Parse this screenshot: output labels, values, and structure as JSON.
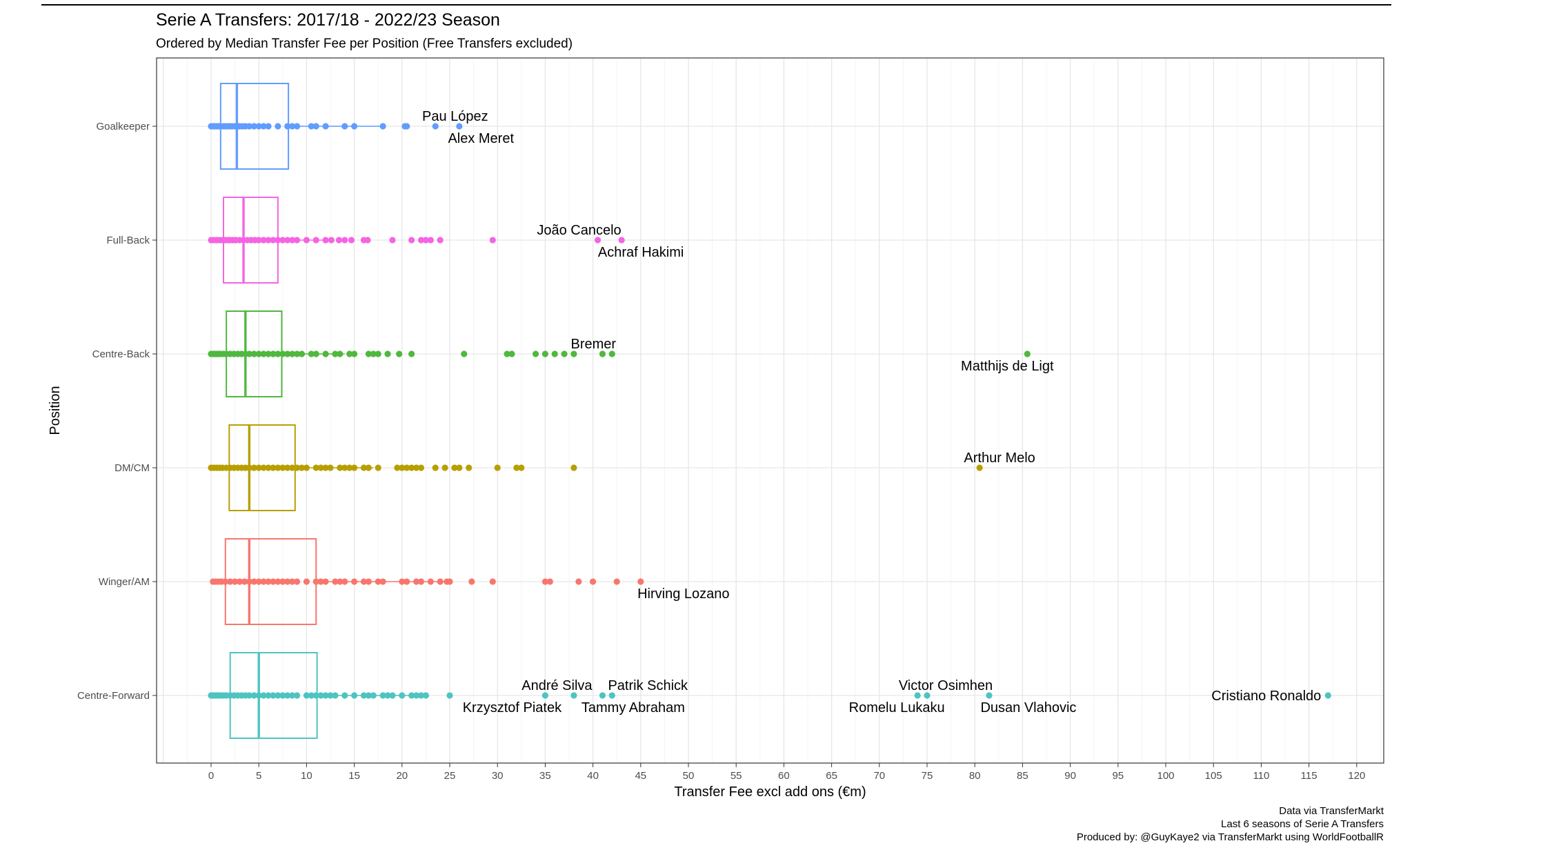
{
  "chart_data": {
    "type": "boxplot",
    "title": "Serie A Transfers: 2017/18 - 2022/23 Season",
    "subtitle": "Ordered by Median Transfer Fee per Position (Free Transfers excluded)",
    "xlabel": "Transfer Fee excl add ons (€m)",
    "ylabel": "Position",
    "xlim": [
      -5.5,
      123
    ],
    "xticks": [
      0,
      5,
      10,
      15,
      20,
      25,
      30,
      35,
      40,
      45,
      50,
      55,
      60,
      65,
      70,
      75,
      80,
      85,
      90,
      95,
      100,
      105,
      110,
      115,
      120
    ],
    "grid": true,
    "legend": "none",
    "caption": [
      "Data via TransferMarkt",
      "Last 6 seasons of Serie A Transfers",
      "Produced by: @GuyKaye2 via TransferMarkt using WorldFootballR"
    ],
    "categories": [
      "Goalkeeper",
      "Full-Back",
      "Centre-Back",
      "DM/CM",
      "Winger/AM",
      "Centre-Forward"
    ],
    "series": [
      {
        "name": "Goalkeeper",
        "color": "#619CFF",
        "box": {
          "q1": 1.0,
          "median": 2.7,
          "q3": 8.1,
          "whisker_low": 0,
          "whisker_high": 18
        },
        "points": [
          0,
          0.2,
          0.4,
          0.6,
          0.8,
          1,
          1.3,
          1.5,
          1.8,
          2,
          2.2,
          2.5,
          2.8,
          3,
          3.3,
          3.6,
          4,
          4.5,
          5,
          5.5,
          6,
          7,
          8,
          8.5,
          9,
          10.5,
          11,
          12,
          14,
          15,
          18,
          20.3,
          20.5,
          23.5,
          26
        ],
        "labels": [
          {
            "text": "Pau López",
            "x": 26
          },
          {
            "text": "Alex Meret",
            "x": 23.5
          }
        ]
      },
      {
        "name": "Full-Back",
        "color": "#F564E3",
        "box": {
          "q1": 1.3,
          "median": 3.4,
          "q3": 7.0,
          "whisker_low": 0,
          "whisker_high": 12.4
        },
        "points": [
          0,
          0.3,
          0.6,
          0.9,
          1.2,
          1.5,
          1.8,
          2,
          2.3,
          2.6,
          3,
          3.4,
          3.8,
          4.2,
          4.6,
          5,
          5.5,
          6,
          6.5,
          7,
          7.5,
          8,
          8.5,
          9,
          10,
          11,
          12,
          12.6,
          13.4,
          14,
          14.7,
          16,
          16.4,
          19,
          21,
          22,
          22.5,
          23,
          24,
          29.5,
          40.5,
          43
        ],
        "labels": [
          {
            "text": "João Cancelo",
            "x": 40.5
          },
          {
            "text": "Achraf Hakimi",
            "x": 43
          }
        ]
      },
      {
        "name": "Centre-Back",
        "color": "#4FB83E",
        "box": {
          "q1": 1.6,
          "median": 3.6,
          "q3": 7.4,
          "whisker_low": 0,
          "whisker_high": 14
        },
        "points": [
          0,
          0.2,
          0.4,
          0.6,
          0.8,
          1,
          1.3,
          1.6,
          2,
          2.4,
          2.8,
          3.2,
          3.6,
          4,
          4.5,
          5,
          5.5,
          6,
          6.5,
          7,
          7.5,
          8,
          8.5,
          9,
          9.5,
          10.5,
          11,
          12,
          13,
          13.5,
          14.5,
          15,
          16.5,
          17,
          17.5,
          18.5,
          19.7,
          21,
          26.5,
          31,
          31.5,
          34,
          35,
          36,
          37,
          38,
          41,
          42,
          85.5
        ],
        "labels": [
          {
            "text": "Bremer",
            "x": 42
          },
          {
            "text": "Matthijs de Ligt",
            "x": 85.5
          }
        ]
      },
      {
        "name": "DM/CM",
        "color": "#B79F00",
        "box": {
          "q1": 1.9,
          "median": 4.0,
          "q3": 8.8,
          "whisker_low": 0,
          "whisker_high": 17
        },
        "points": [
          0,
          0.3,
          0.6,
          0.9,
          1.2,
          1.6,
          2,
          2.4,
          2.8,
          3.2,
          3.6,
          4,
          4.5,
          5,
          5.5,
          6,
          6.5,
          7,
          7.5,
          8,
          8.5,
          9,
          9.5,
          10,
          11,
          11.5,
          12,
          12.5,
          13.5,
          14,
          14.5,
          15,
          16,
          16.5,
          17.5,
          19.5,
          20,
          20.5,
          21,
          21.5,
          22,
          23.5,
          24.5,
          25.5,
          26,
          27,
          30,
          32,
          32.5,
          38,
          80.5
        ],
        "labels": [
          {
            "text": "Arthur Melo",
            "x": 80.5
          }
        ]
      },
      {
        "name": "Winger/AM",
        "color": "#F8766D",
        "box": {
          "q1": 1.5,
          "median": 4.0,
          "q3": 11.0,
          "whisker_low": 0.2,
          "whisker_high": 25
        },
        "points": [
          0.2,
          0.5,
          0.8,
          1.1,
          1.5,
          2,
          2.5,
          3,
          3.5,
          4,
          4.5,
          5,
          5.5,
          6,
          6.5,
          7,
          7.5,
          8,
          8.5,
          9,
          10,
          11,
          11.5,
          12,
          13,
          13.5,
          14,
          15,
          16,
          16.5,
          17.5,
          18,
          20,
          20.5,
          21.5,
          22,
          23,
          24,
          24.7,
          25,
          27.3,
          29.5,
          35,
          35.5,
          38.5,
          40,
          42.5,
          45
        ],
        "labels": [
          {
            "text": "Hirving Lozano",
            "x": 45
          }
        ]
      },
      {
        "name": "Centre-Forward",
        "color": "#4DC4C1",
        "box": {
          "q1": 2.0,
          "median": 5.0,
          "q3": 11.1,
          "whisker_low": 0,
          "whisker_high": 22.5
        },
        "points": [
          0,
          0.2,
          0.4,
          0.6,
          0.8,
          1,
          1.3,
          1.6,
          2,
          2.4,
          2.8,
          3.2,
          3.6,
          4,
          4.5,
          5,
          5.5,
          6,
          6.5,
          7,
          7.5,
          8,
          8.5,
          9,
          10,
          10.5,
          11,
          11.5,
          12,
          12.5,
          13,
          14,
          15,
          16,
          16.5,
          17,
          18,
          18.5,
          19,
          20,
          21,
          21.5,
          22,
          22.5,
          25,
          35,
          38,
          41,
          42,
          74,
          75,
          81.5,
          117
        ],
        "labels": [
          {
            "text": "André Silva",
            "x": 35
          },
          {
            "text": "Krzysztof Piatek",
            "x": 35
          },
          {
            "text": "Patrik Schick",
            "x": 42
          },
          {
            "text": "Tammy Abraham",
            "x": 38
          },
          {
            "text": "Victor Osimhen",
            "x": 75
          },
          {
            "text": "Romelu Lukaku",
            "x": 74
          },
          {
            "text": "Dusan Vlahovic",
            "x": 81.5
          },
          {
            "text": "Cristiano Ronaldo",
            "x": 117
          }
        ]
      }
    ]
  }
}
